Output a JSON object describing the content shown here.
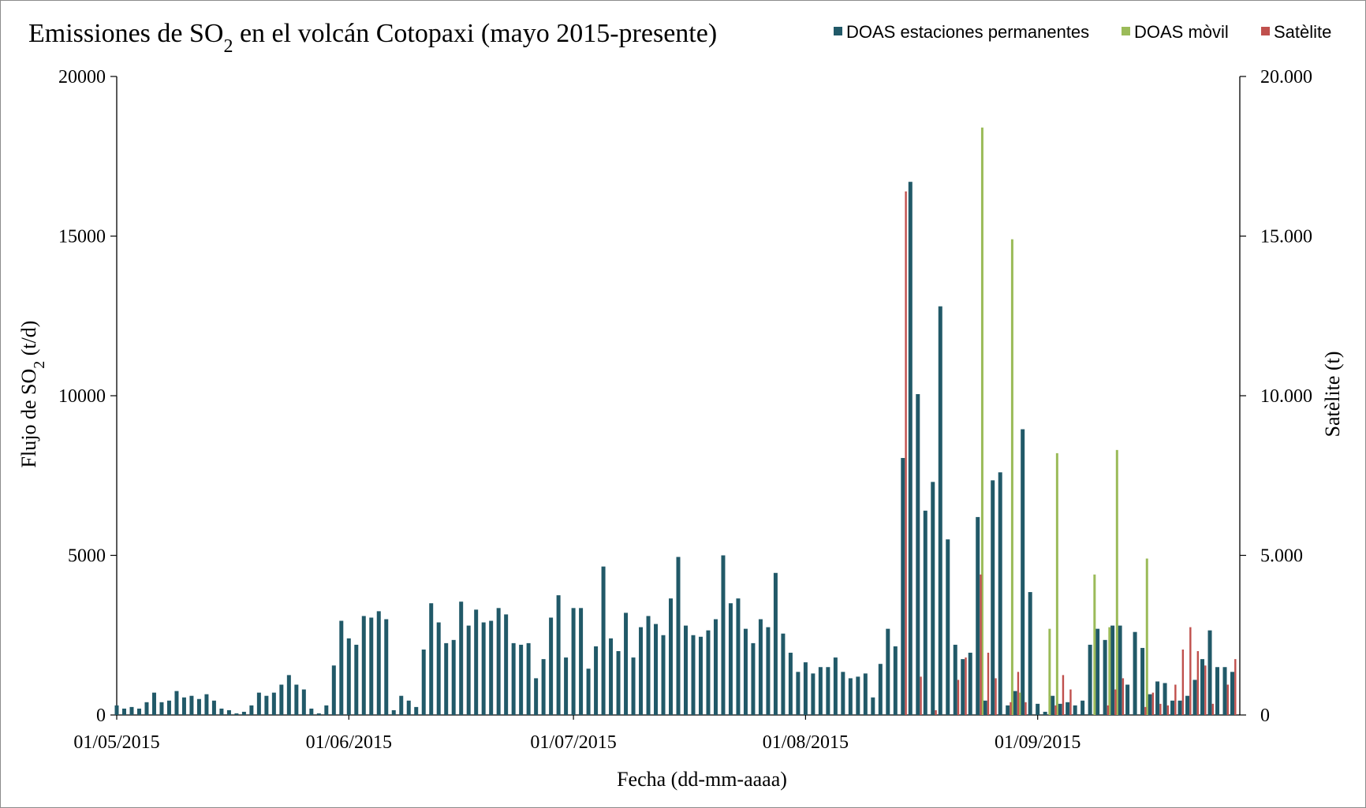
{
  "chart_data": {
    "type": "bar",
    "title_parts": [
      "Emissiones de SO",
      "2",
      " en el volcán Cotopaxi (mayo 2015-presente)"
    ],
    "xlabel": "Fecha (dd-mm-aaaa)",
    "ylabel_parts": [
      "Flujo de SO",
      "2",
      " (t/d)"
    ],
    "y2label": "Satèlite  (t)",
    "ylim": [
      0,
      20000
    ],
    "y2lim": [
      0,
      20000
    ],
    "y_ticks": [
      "0",
      "5000",
      "10000",
      "15000",
      "20000"
    ],
    "y2_ticks": [
      "0",
      "5.000",
      "10.000",
      "15.000",
      "20.000"
    ],
    "x_tick_labels": [
      {
        "label": "01/05/2015",
        "day": 1
      },
      {
        "label": "01/06/2015",
        "day": 32
      },
      {
        "label": "01/07/2015",
        "day": 62
      },
      {
        "label": "01/08/2015",
        "day": 93
      },
      {
        "label": "01/09/2015",
        "day": 124
      }
    ],
    "legend": {
      "placement": "top-right"
    },
    "series": [
      {
        "name": "DOAS estaciones permanentes",
        "color": "#215968",
        "axis": "left",
        "values": [
          [
            1,
            300
          ],
          [
            2,
            200
          ],
          [
            3,
            250
          ],
          [
            4,
            200
          ],
          [
            5,
            400
          ],
          [
            6,
            700
          ],
          [
            7,
            400
          ],
          [
            8,
            450
          ],
          [
            9,
            750
          ],
          [
            10,
            550
          ],
          [
            11,
            600
          ],
          [
            12,
            500
          ],
          [
            13,
            650
          ],
          [
            14,
            450
          ],
          [
            15,
            200
          ],
          [
            16,
            150
          ],
          [
            17,
            50
          ],
          [
            18,
            100
          ],
          [
            19,
            300
          ],
          [
            20,
            700
          ],
          [
            21,
            600
          ],
          [
            22,
            700
          ],
          [
            23,
            950
          ],
          [
            24,
            1250
          ],
          [
            25,
            950
          ],
          [
            26,
            800
          ],
          [
            27,
            200
          ],
          [
            28,
            50
          ],
          [
            29,
            300
          ],
          [
            30,
            1550
          ],
          [
            31,
            2950
          ],
          [
            32,
            2400
          ],
          [
            33,
            2200
          ],
          [
            34,
            3100
          ],
          [
            35,
            3050
          ],
          [
            36,
            3250
          ],
          [
            37,
            3000
          ],
          [
            38,
            150
          ],
          [
            39,
            600
          ],
          [
            40,
            450
          ],
          [
            41,
            250
          ],
          [
            42,
            2050
          ],
          [
            43,
            3500
          ],
          [
            44,
            2900
          ],
          [
            45,
            2250
          ],
          [
            46,
            2350
          ],
          [
            47,
            3550
          ],
          [
            48,
            2800
          ],
          [
            49,
            3300
          ],
          [
            50,
            2900
          ],
          [
            51,
            2950
          ],
          [
            52,
            3350
          ],
          [
            53,
            3150
          ],
          [
            54,
            2250
          ],
          [
            55,
            2200
          ],
          [
            56,
            2250
          ],
          [
            57,
            1150
          ],
          [
            58,
            1750
          ],
          [
            59,
            3050
          ],
          [
            60,
            3750
          ],
          [
            61,
            1800
          ],
          [
            62,
            3350
          ],
          [
            63,
            3350
          ],
          [
            64,
            1450
          ],
          [
            65,
            2150
          ],
          [
            66,
            4650
          ],
          [
            67,
            2400
          ],
          [
            68,
            2000
          ],
          [
            69,
            3200
          ],
          [
            70,
            1800
          ],
          [
            71,
            2750
          ],
          [
            72,
            3100
          ],
          [
            73,
            2850
          ],
          [
            74,
            2500
          ],
          [
            75,
            3650
          ],
          [
            76,
            4950
          ],
          [
            77,
            2800
          ],
          [
            78,
            2500
          ],
          [
            79,
            2450
          ],
          [
            80,
            2650
          ],
          [
            81,
            3000
          ],
          [
            82,
            5000
          ],
          [
            83,
            3500
          ],
          [
            84,
            3650
          ],
          [
            85,
            2700
          ],
          [
            86,
            2250
          ],
          [
            87,
            3000
          ],
          [
            88,
            2750
          ],
          [
            89,
            4450
          ],
          [
            90,
            2550
          ],
          [
            91,
            1950
          ],
          [
            92,
            1350
          ],
          [
            93,
            1650
          ],
          [
            94,
            1300
          ],
          [
            95,
            1500
          ],
          [
            96,
            1500
          ],
          [
            97,
            1800
          ],
          [
            98,
            1350
          ],
          [
            99,
            1150
          ],
          [
            100,
            1200
          ],
          [
            101,
            1300
          ],
          [
            102,
            550
          ],
          [
            103,
            1600
          ],
          [
            104,
            2700
          ],
          [
            105,
            2150
          ],
          [
            106,
            8050
          ],
          [
            107,
            16700
          ],
          [
            108,
            10050
          ],
          [
            109,
            6400
          ],
          [
            110,
            7300
          ],
          [
            111,
            12800
          ],
          [
            112,
            5500
          ],
          [
            113,
            2200
          ],
          [
            114,
            1750
          ],
          [
            115,
            1950
          ],
          [
            116,
            6200
          ],
          [
            117,
            450
          ],
          [
            118,
            7350
          ],
          [
            119,
            7600
          ],
          [
            120,
            300
          ],
          [
            121,
            750
          ],
          [
            122,
            8950
          ],
          [
            123,
            3850
          ],
          [
            124,
            350
          ],
          [
            125,
            100
          ],
          [
            126,
            600
          ],
          [
            127,
            350
          ],
          [
            128,
            400
          ],
          [
            129,
            300
          ],
          [
            130,
            450
          ],
          [
            131,
            2200
          ],
          [
            132,
            2700
          ],
          [
            133,
            2350
          ],
          [
            134,
            2800
          ],
          [
            135,
            2800
          ],
          [
            136,
            950
          ],
          [
            137,
            2600
          ],
          [
            138,
            2100
          ],
          [
            139,
            650
          ],
          [
            140,
            1050
          ],
          [
            141,
            1000
          ],
          [
            142,
            450
          ],
          [
            143,
            450
          ],
          [
            144,
            600
          ],
          [
            145,
            1100
          ],
          [
            146,
            1750
          ],
          [
            147,
            2650
          ],
          [
            148,
            1500
          ],
          [
            149,
            1500
          ],
          [
            150,
            1350
          ]
        ]
      },
      {
        "name": "DOAS mòvil",
        "color": "#9bbb59",
        "axis": "left",
        "values": [
          [
            116.6,
            18400
          ],
          [
            120.6,
            14900
          ],
          [
            121.6,
            700
          ],
          [
            125.6,
            2700
          ],
          [
            126.6,
            8200
          ],
          [
            131.6,
            4400
          ],
          [
            133.6,
            2750
          ],
          [
            134.6,
            8300
          ],
          [
            138.6,
            4900
          ]
        ]
      },
      {
        "name": "Satèlite",
        "color": "#c0504d",
        "axis": "right",
        "values": [
          [
            106.4,
            16400
          ],
          [
            108.4,
            1200
          ],
          [
            110.4,
            150
          ],
          [
            113.4,
            1100
          ],
          [
            114.4,
            1800
          ],
          [
            116.4,
            4400
          ],
          [
            117.4,
            1950
          ],
          [
            118.4,
            1150
          ],
          [
            120.4,
            400
          ],
          [
            121.4,
            1350
          ],
          [
            122.4,
            400
          ],
          [
            126.4,
            300
          ],
          [
            127.4,
            1250
          ],
          [
            128.4,
            800
          ],
          [
            133.4,
            300
          ],
          [
            134.4,
            800
          ],
          [
            135.4,
            1150
          ],
          [
            138.4,
            250
          ],
          [
            139.4,
            700
          ],
          [
            140.4,
            350
          ],
          [
            141.4,
            300
          ],
          [
            142.4,
            950
          ],
          [
            143.4,
            2050
          ],
          [
            144.4,
            2750
          ],
          [
            145.4,
            2000
          ],
          [
            146.4,
            1550
          ],
          [
            147.4,
            350
          ],
          [
            149.4,
            950
          ],
          [
            150.4,
            1750
          ]
        ]
      }
    ]
  }
}
